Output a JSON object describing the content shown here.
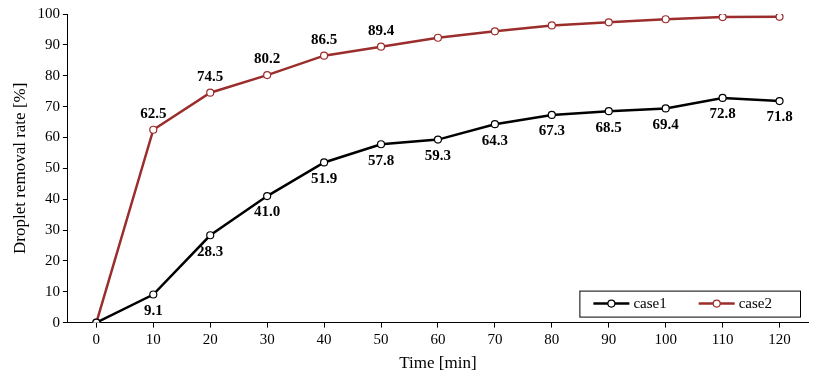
{
  "chart_data": {
    "type": "line",
    "x_label": "Time [min]",
    "y_label": "Droplet removal rate [%]",
    "categories": [
      0,
      10,
      20,
      30,
      40,
      50,
      60,
      70,
      80,
      90,
      100,
      110,
      120
    ],
    "ylim": [
      0,
      100
    ],
    "yticks": [
      0,
      10,
      20,
      30,
      40,
      50,
      60,
      70,
      80,
      90,
      100
    ],
    "grid": false,
    "legend": "lower right",
    "data_labels": true,
    "series": [
      {
        "name": "case1",
        "color": "#000000",
        "marker": "circle",
        "line_style": "solid",
        "values": [
          0,
          9.1,
          28.3,
          41.0,
          51.9,
          57.8,
          59.3,
          64.3,
          67.3,
          68.5,
          69.4,
          72.8,
          71.8
        ],
        "value_labels": [
          null,
          "9.1",
          "28.3",
          "41.0",
          "51.9",
          "57.8",
          "59.3",
          "64.3",
          "67.3",
          "68.5",
          "69.4",
          "72.8",
          "71.8"
        ]
      },
      {
        "name": "case2",
        "color": "#9b2d2d",
        "marker": "circle",
        "line_style": "solid",
        "values": [
          0,
          62.5,
          74.5,
          80.2,
          86.5,
          89.4,
          92.3,
          94.4,
          96.3,
          97.3,
          98.3,
          99.0,
          99.1
        ],
        "value_labels": [
          null,
          "62.5",
          "74.5",
          "80.2",
          "86.5",
          "89.4",
          null,
          null,
          null,
          null,
          null,
          null,
          null
        ]
      }
    ]
  }
}
